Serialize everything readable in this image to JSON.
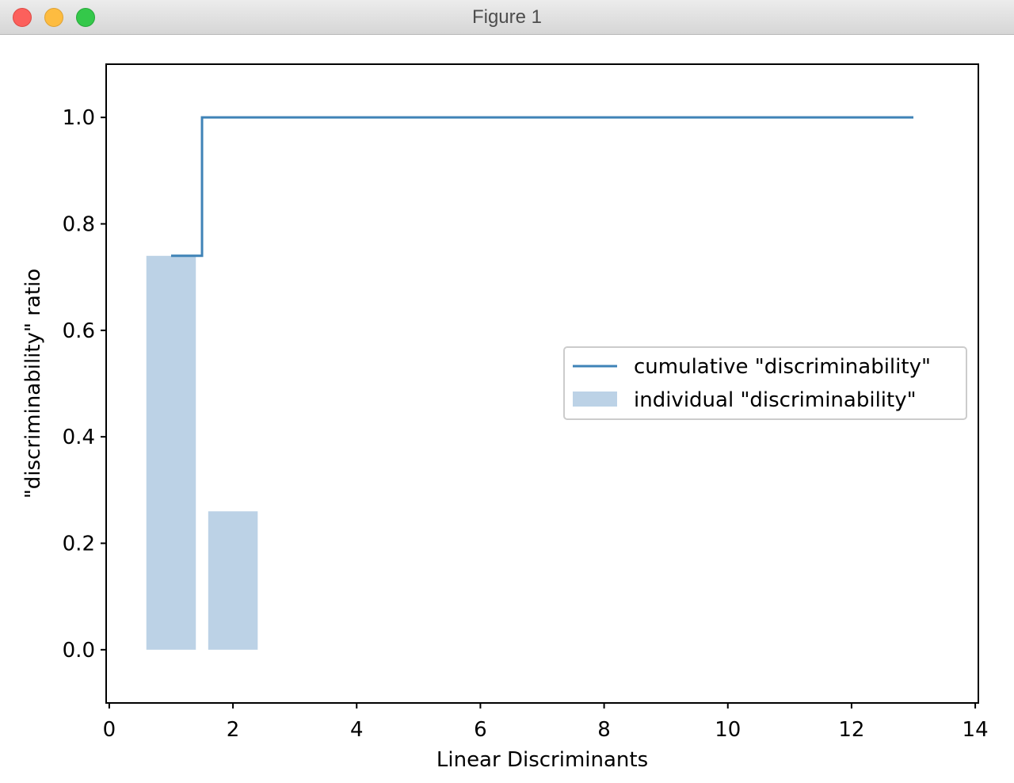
{
  "window": {
    "title": "Figure 1"
  },
  "chart_data": {
    "type": "bar",
    "xlabel": "Linear Discriminants",
    "ylabel": "\"discriminability\" ratio",
    "xlim": [
      -0.05,
      14.05
    ],
    "ylim": [
      -0.1,
      1.1
    ],
    "xticks": [
      0,
      2,
      4,
      6,
      8,
      10,
      12,
      14
    ],
    "yticks": [
      0.0,
      0.2,
      0.4,
      0.6,
      0.8,
      1.0
    ],
    "xtick_labels": [
      "0",
      "2",
      "4",
      "6",
      "8",
      "10",
      "12",
      "14"
    ],
    "ytick_labels": [
      "0.0",
      "0.2",
      "0.4",
      "0.6",
      "0.8",
      "1.0"
    ],
    "bar_width": 0.8,
    "series": [
      {
        "name": "individual \"discriminability\"",
        "kind": "bar",
        "x": [
          1,
          2,
          3,
          4,
          5,
          6,
          7,
          8,
          9,
          10,
          11,
          12,
          13
        ],
        "values": [
          0.74,
          0.26,
          0,
          0,
          0,
          0,
          0,
          0,
          0,
          0,
          0,
          0,
          0
        ],
        "color": "#bcd2e6"
      },
      {
        "name": "cumulative \"discriminability\"",
        "kind": "step",
        "where": "mid",
        "x": [
          1,
          2,
          3,
          4,
          5,
          6,
          7,
          8,
          9,
          10,
          11,
          12,
          13
        ],
        "values": [
          0.74,
          1.0,
          1.0,
          1.0,
          1.0,
          1.0,
          1.0,
          1.0,
          1.0,
          1.0,
          1.0,
          1.0,
          1.0
        ],
        "color": "#3f83b7"
      }
    ],
    "legend": {
      "placement": "center-right",
      "entries": [
        "cumulative \"discriminability\"",
        "individual \"discriminability\""
      ]
    },
    "grid": false
  }
}
